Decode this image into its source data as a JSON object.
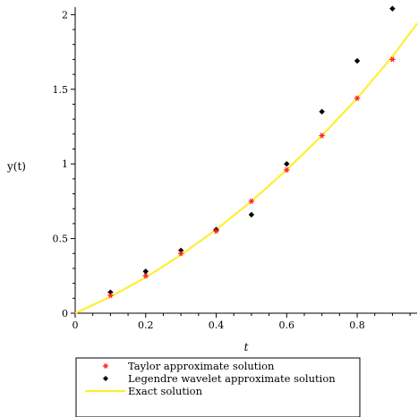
{
  "chart_data": {
    "type": "line",
    "xlabel": "t",
    "ylabel": "y(t)",
    "xlim": [
      0,
      0.97
    ],
    "ylim": [
      0,
      2.05
    ],
    "x_ticks": [
      0,
      0.2,
      0.4,
      0.6,
      0.8
    ],
    "y_ticks": [
      0,
      0.5,
      1,
      1.5,
      2
    ],
    "x_tick_labels": [
      "0",
      "0.2",
      "0.4",
      "0.6",
      "0.8"
    ],
    "y_tick_labels": [
      "0",
      "0.5",
      "1",
      "1.5",
      "2"
    ],
    "grid": false,
    "legend_position": "bottom",
    "series": [
      {
        "name": "Taylor approximate solution",
        "type": "scatter",
        "marker": "star",
        "color": "#ff2020",
        "x": [
          0.1,
          0.2,
          0.3,
          0.4,
          0.5,
          0.6,
          0.7,
          0.8,
          0.9
        ],
        "y": [
          0.12,
          0.25,
          0.4,
          0.55,
          0.75,
          0.96,
          1.19,
          1.44,
          1.7
        ]
      },
      {
        "name": "Legendre wavelet approximate solution",
        "type": "scatter",
        "marker": "diamond",
        "color": "#000000",
        "x": [
          0.1,
          0.2,
          0.3,
          0.4,
          0.5,
          0.6,
          0.7,
          0.8,
          0.9
        ],
        "y": [
          0.14,
          0.28,
          0.42,
          0.56,
          0.66,
          1.0,
          1.35,
          1.69,
          2.04
        ]
      },
      {
        "name": "Exact solution",
        "type": "line",
        "color": "#ffee33",
        "x": [
          0,
          0.1,
          0.2,
          0.3,
          0.4,
          0.5,
          0.6,
          0.7,
          0.8,
          0.9,
          0.97
        ],
        "y": [
          0,
          0.11,
          0.24,
          0.39,
          0.56,
          0.75,
          0.96,
          1.19,
          1.44,
          1.72,
          1.94
        ]
      }
    ]
  }
}
